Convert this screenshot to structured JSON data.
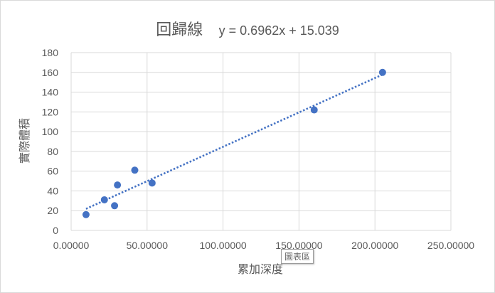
{
  "chart_data": {
    "type": "scatter",
    "title": "回歸線",
    "trendline_equation": "y = 0.6962x + 15.039",
    "xlabel": "累加深度",
    "ylabel": "實際體積",
    "xlim": [
      0,
      250
    ],
    "ylim": [
      0,
      180
    ],
    "x_ticks": [
      "0.00000",
      "50.00000",
      "100.00000",
      "150.00000",
      "200.00000",
      "250.00000"
    ],
    "y_ticks": [
      "0",
      "20",
      "40",
      "60",
      "80",
      "100",
      "120",
      "140",
      "160",
      "180"
    ],
    "grid": true,
    "marker_color": "#4472c4",
    "trendline": {
      "type": "linear",
      "slope": 0.6962,
      "intercept": 15.039,
      "x_range": [
        9.8,
        205
      ],
      "style": "dotted",
      "color": "#4472c4"
    },
    "series": [
      {
        "points": [
          {
            "x": 9.8,
            "y": 16
          },
          {
            "x": 21.9,
            "y": 31
          },
          {
            "x": 28.6,
            "y": 25
          },
          {
            "x": 30.5,
            "y": 46
          },
          {
            "x": 41.9,
            "y": 61
          },
          {
            "x": 53.3,
            "y": 48
          },
          {
            "x": 160,
            "y": 122
          },
          {
            "x": 205,
            "y": 160
          }
        ]
      }
    ]
  },
  "tooltip": "圖表區"
}
